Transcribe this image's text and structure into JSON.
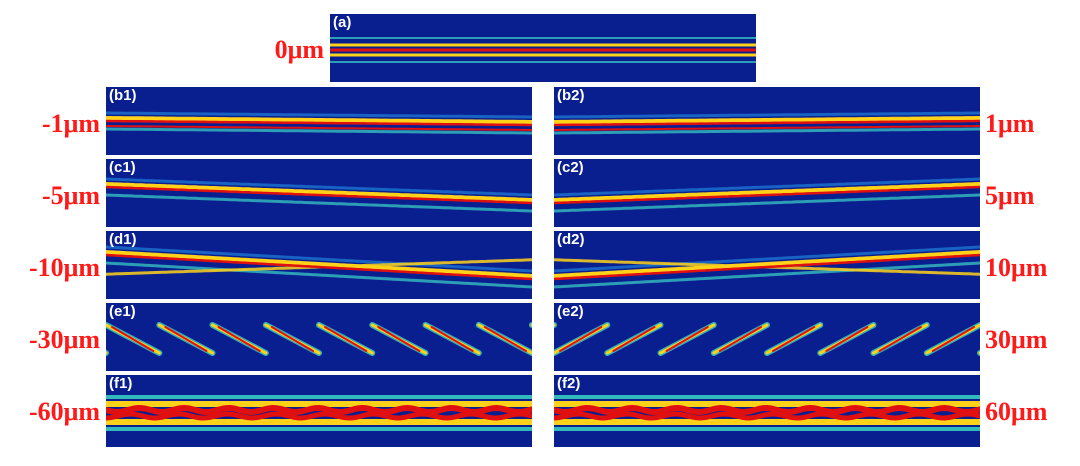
{
  "figure": {
    "top_panel": {
      "tag": "(a)",
      "offset": "0μm",
      "shift": 0
    },
    "rows": [
      {
        "left": {
          "tag": "(b1)",
          "offset": "-1μm",
          "shift": -1
        },
        "right": {
          "tag": "(b2)",
          "offset": "1μm",
          "shift": 1
        }
      },
      {
        "left": {
          "tag": "(c1)",
          "offset": "-5μm",
          "shift": -5
        },
        "right": {
          "tag": "(c2)",
          "offset": "5μm",
          "shift": 5
        }
      },
      {
        "left": {
          "tag": "(d1)",
          "offset": "-10μm",
          "shift": -10
        },
        "right": {
          "tag": "(d2)",
          "offset": "10μm",
          "shift": 10
        }
      },
      {
        "left": {
          "tag": "(e1)",
          "offset": "-30μm",
          "shift": -30
        },
        "right": {
          "tag": "(e2)",
          "offset": "30μm",
          "shift": 30
        }
      },
      {
        "left": {
          "tag": "(f1)",
          "offset": "-60μm",
          "shift": -60
        },
        "right": {
          "tag": "(f2)",
          "offset": "60μm",
          "shift": 60
        }
      }
    ]
  },
  "colors": {
    "background": "#0a1f8f",
    "core": "#e01010",
    "hot": "#ffd21a",
    "warm": "#3bd6c6",
    "cool": "#1c7fd9",
    "label": "#ff1a1a",
    "tag": "#ffffff"
  }
}
